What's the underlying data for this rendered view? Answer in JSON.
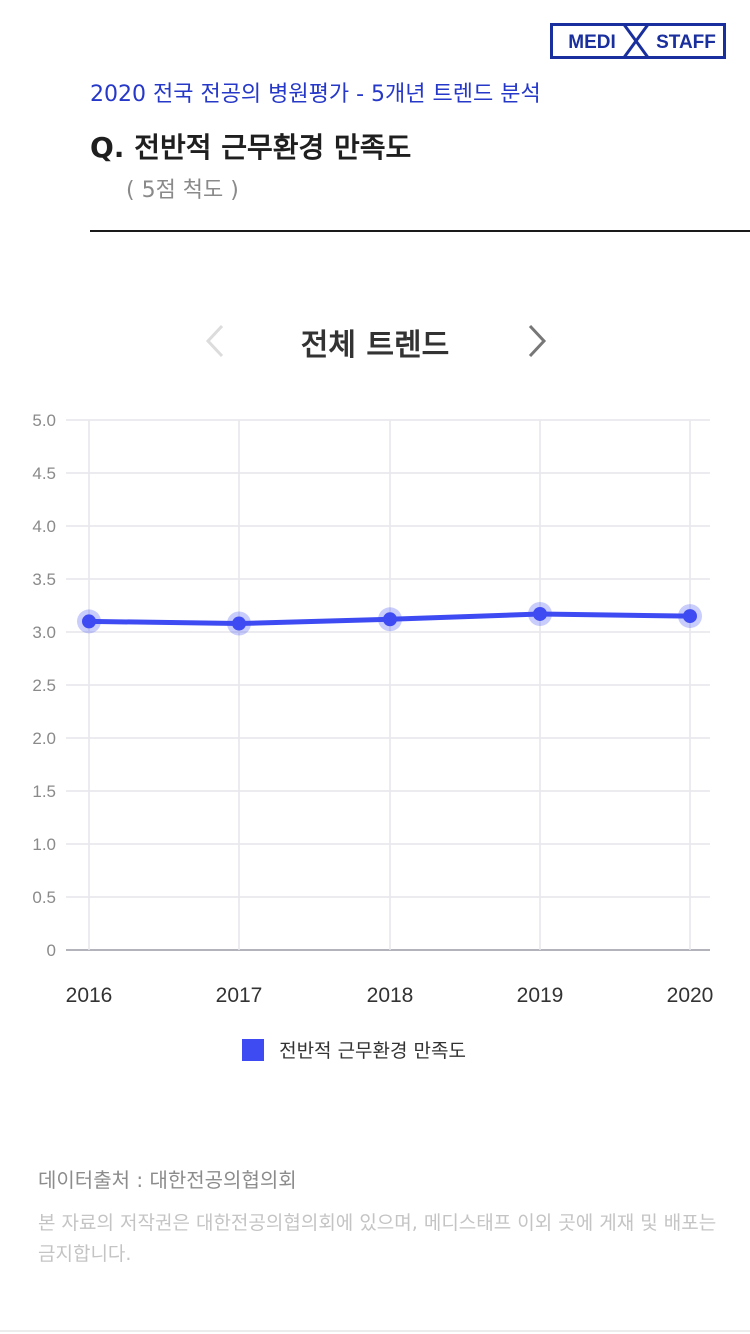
{
  "logo": {
    "left_text": "MEDI",
    "right_text": "STAFF",
    "color": "#1a2f9e"
  },
  "header": {
    "subtitle": "2020 전국 전공의 병원평가 - 5개년 트렌드 분석",
    "question": "Q. 전반적 근무환경 만족도",
    "scale": "( 5점 척도 )"
  },
  "chart_nav": {
    "title": "전체 트렌드",
    "prev_icon": "chevron-left-icon",
    "next_icon": "chevron-right-icon"
  },
  "chart_data": {
    "type": "line",
    "x": [
      "2016",
      "2017",
      "2018",
      "2019",
      "2020"
    ],
    "series": [
      {
        "name": "전반적 근무환경 만족도",
        "values": [
          3.1,
          3.08,
          3.12,
          3.17,
          3.15
        ],
        "color": "#3e4bf2"
      }
    ],
    "ylim": [
      0,
      5
    ],
    "yticks": [
      "0",
      "0.5",
      "1.0",
      "1.5",
      "2.0",
      "2.5",
      "3.0",
      "3.5",
      "4.0",
      "4.5",
      "5.0"
    ],
    "grid": true,
    "legend": "bottom"
  },
  "footer": {
    "source": "데이터출처 : 대한전공의협의회",
    "copyright": "본 자료의 저작권은 대한전공의협의회에 있으며, 메디스태프 이외 곳에 게재 및 배포는 금지합니다."
  }
}
